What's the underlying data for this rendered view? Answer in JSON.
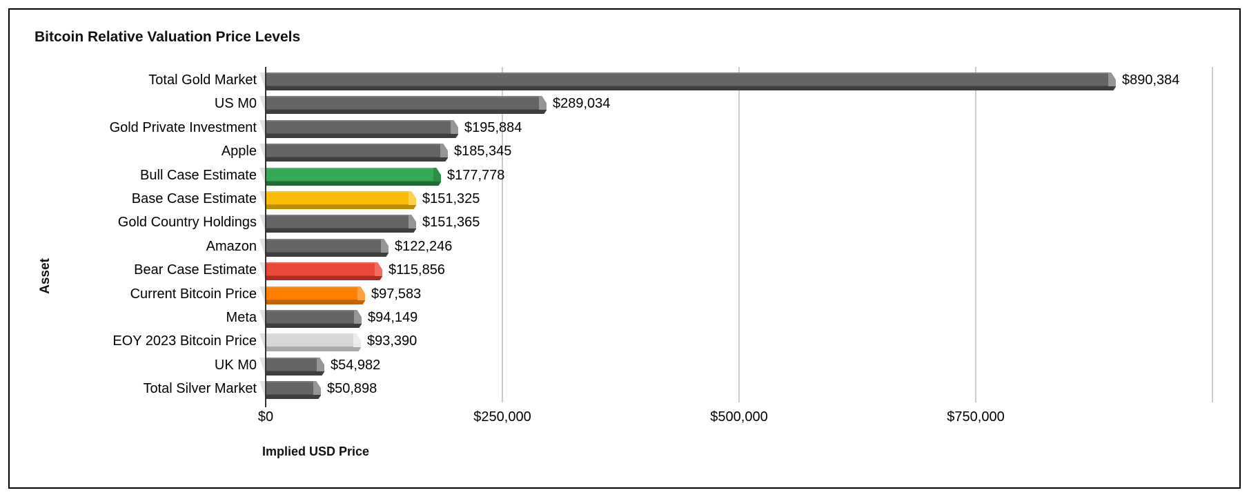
{
  "chart_data": {
    "type": "bar",
    "orientation": "horizontal",
    "title": "Bitcoin Relative Valuation Price Levels",
    "xlabel": "Implied USD Price",
    "ylabel": "Asset",
    "xlim": [
      0,
      1000000
    ],
    "grid": "vertical",
    "gridline_interval": 250000,
    "legend": "none",
    "x_ticks": [
      {
        "value": 0,
        "label": "$0"
      },
      {
        "value": 250000,
        "label": "$250,000"
      },
      {
        "value": 500000,
        "label": "$500,000"
      },
      {
        "value": 750000,
        "label": "$750,000"
      },
      {
        "value": 1000000,
        "label": ""
      }
    ],
    "bars": [
      {
        "category": "Total Gold Market",
        "value": 890384,
        "value_label": "$890,384",
        "palette": "gray"
      },
      {
        "category": "US M0",
        "value": 289034,
        "value_label": "$289,034",
        "palette": "gray"
      },
      {
        "category": "Gold Private Investment",
        "value": 195884,
        "value_label": "$195,884",
        "palette": "gray"
      },
      {
        "category": "Apple",
        "value": 185345,
        "value_label": "$185,345",
        "palette": "gray"
      },
      {
        "category": "Bull Case Estimate",
        "value": 177778,
        "value_label": "$177,778",
        "palette": "green"
      },
      {
        "category": "Base Case Estimate",
        "value": 151325,
        "value_label": "$151,325",
        "palette": "yellow"
      },
      {
        "category": "Gold Country Holdings",
        "value": 151365,
        "value_label": "$151,365",
        "palette": "gray"
      },
      {
        "category": "Amazon",
        "value": 122246,
        "value_label": "$122,246",
        "palette": "gray"
      },
      {
        "category": "Bear Case Estimate",
        "value": 115856,
        "value_label": "$115,856",
        "palette": "red"
      },
      {
        "category": "Current Bitcoin Price",
        "value": 97583,
        "value_label": "$97,583",
        "palette": "orange"
      },
      {
        "category": "Meta",
        "value": 94149,
        "value_label": "$94,149",
        "palette": "gray"
      },
      {
        "category": "EOY 2023 Bitcoin Price",
        "value": 93390,
        "value_label": "$93,390",
        "palette": "lightgray"
      },
      {
        "category": "UK M0",
        "value": 54982,
        "value_label": "$54,982",
        "palette": "gray"
      },
      {
        "category": "Total Silver Market",
        "value": 50898,
        "value_label": "$50,898",
        "palette": "gray"
      }
    ]
  },
  "colors": {
    "background": "#ffffff",
    "frame_border": "#000000",
    "gridline": "#cccccc",
    "axis_line": "#333333",
    "text": "#000000",
    "notch": "#e2e2e2",
    "palette": {
      "gray": {
        "face": "#656565",
        "bottom": "#3e3e3e",
        "end": "#959595"
      },
      "green": {
        "face": "#34a853",
        "bottom": "#1e6b33",
        "end": "#2d8f46"
      },
      "yellow": {
        "face": "#fbbc04",
        "bottom": "#bf8c00",
        "end": "#fcd04a"
      },
      "red": {
        "face": "#e8473a",
        "bottom": "#b02c20",
        "end": "#ee6e5e"
      },
      "orange": {
        "face": "#ff7f00",
        "bottom": "#c66300",
        "end": "#ffa040"
      },
      "lightgray": {
        "face": "#d7d7d7",
        "bottom": "#a9a9a9",
        "end": "#ebebeb"
      }
    }
  }
}
